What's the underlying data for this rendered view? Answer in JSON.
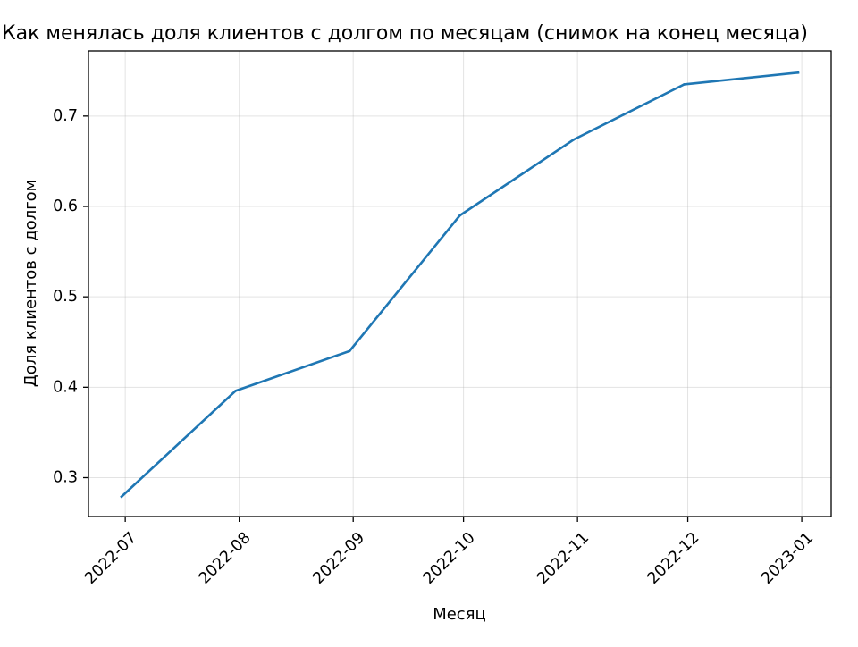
{
  "chart_data": {
    "type": "line",
    "title": "Как менялась доля клиентов с долгом по месяцам (снимок на конец месяца)",
    "xlabel": "Месяц",
    "ylabel": "Доля клиентов с долгом",
    "x": [
      "2022-06-30",
      "2022-07-31",
      "2022-08-31",
      "2022-09-30",
      "2022-10-31",
      "2022-11-30",
      "2022-12-31"
    ],
    "x_ticks": [
      "2022-07",
      "2022-08",
      "2022-09",
      "2022-10",
      "2022-11",
      "2022-12",
      "2023-01"
    ],
    "x_tick_dates": [
      "2022-07-01",
      "2022-08-01",
      "2022-09-01",
      "2022-10-01",
      "2022-11-01",
      "2022-12-01",
      "2023-01-01"
    ],
    "x_range": [
      "2022-06-21",
      "2023-01-09"
    ],
    "y_ticks": [
      0.3,
      0.4,
      0.5,
      0.6,
      0.7
    ],
    "ylim": [
      0.257,
      0.772
    ],
    "series": [
      {
        "values": [
          0.279,
          0.396,
          0.44,
          0.59,
          0.674,
          0.735,
          0.748
        ],
        "color": "#1f77b4"
      }
    ],
    "grid": true,
    "legend": "none"
  }
}
